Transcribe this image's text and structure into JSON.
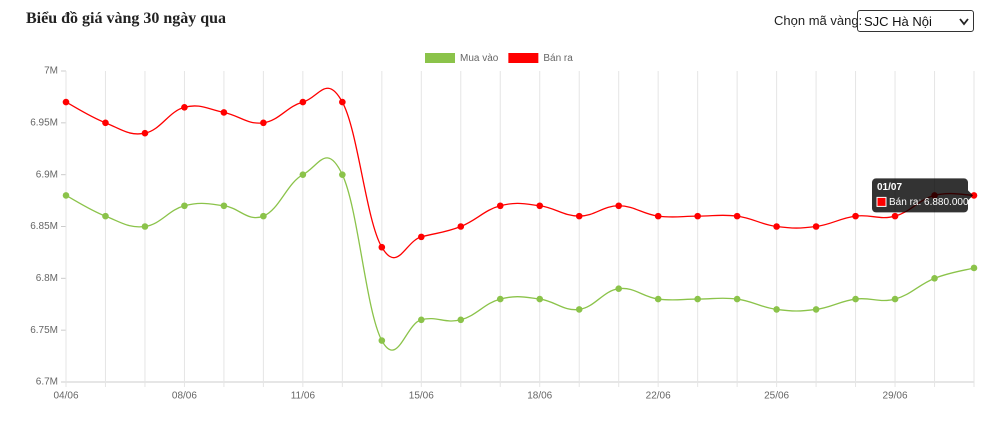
{
  "header": {
    "title": "Biểu đồ giá vàng 30 ngày qua",
    "select_label": "Chọn mã vàng:",
    "select_value": "SJC Hà Nội"
  },
  "chart_data": {
    "type": "line",
    "categories": [
      "04/06",
      null,
      null,
      "08/06",
      null,
      null,
      "11/06",
      null,
      null,
      "15/06",
      null,
      null,
      "18/06",
      null,
      null,
      "22/06",
      null,
      null,
      "25/06",
      null,
      null,
      "29/06",
      null,
      "01/07"
    ],
    "series": [
      {
        "name": "Mua vào",
        "color": "#8bc34a",
        "values": [
          6.88,
          6.86,
          6.85,
          6.87,
          6.87,
          6.86,
          6.9,
          6.9,
          6.74,
          6.76,
          6.76,
          6.78,
          6.78,
          6.77,
          6.79,
          6.78,
          6.78,
          6.78,
          6.77,
          6.77,
          6.78,
          6.78,
          6.8,
          6.81
        ]
      },
      {
        "name": "Bán ra",
        "color": "#ff0000",
        "values": [
          6.97,
          6.95,
          6.94,
          6.965,
          6.96,
          6.95,
          6.97,
          6.97,
          6.83,
          6.84,
          6.85,
          6.87,
          6.87,
          6.86,
          6.87,
          6.86,
          6.86,
          6.86,
          6.85,
          6.85,
          6.86,
          6.86,
          6.88,
          6.88
        ],
        "value_labels": [
          null,
          null,
          null,
          null,
          null,
          null,
          null,
          null,
          null,
          null,
          null,
          null,
          null,
          null,
          null,
          null,
          null,
          null,
          null,
          null,
          null,
          null,
          null,
          "Bán ra: 6.880.000"
        ]
      }
    ],
    "ylim": [
      6.7,
      7
    ],
    "yticks": [
      {
        "value": 6.7,
        "label": "6.7M"
      },
      {
        "value": 6.75,
        "label": "6.75M"
      },
      {
        "value": 6.8,
        "label": "6.8M"
      },
      {
        "value": 6.85,
        "label": "6.85M"
      },
      {
        "value": 6.9,
        "label": "6.9M"
      },
      {
        "value": 6.95,
        "label": "6.95M"
      },
      {
        "value": 7,
        "label": "7M"
      }
    ],
    "grid": "x",
    "legend": "top"
  }
}
